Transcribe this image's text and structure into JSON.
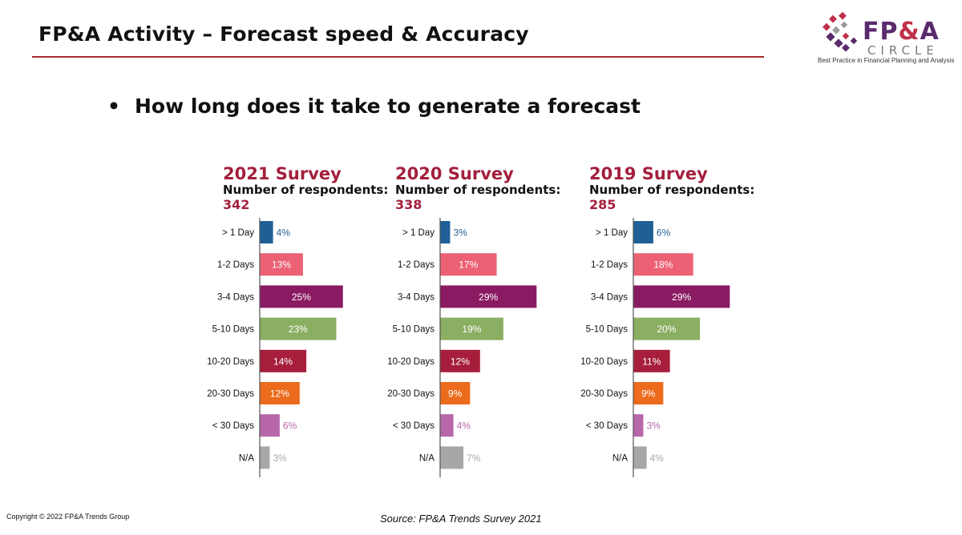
{
  "header": {
    "title": "FP&A Activity – Forecast speed & Accuracy"
  },
  "logo": {
    "brand_main": "FP",
    "brand_amp": "&",
    "brand_end": "A",
    "brand_sub": "CIRCLE",
    "tagline": "Best Practice in Financial Planning and Analysis"
  },
  "bullet": {
    "symbol": "•",
    "text": "How long does it take to generate a forecast"
  },
  "footer": {
    "copyright": "Copyright © 2022 FP&A Trends Group",
    "source": "Source: FP&A Trends Survey 2021"
  },
  "chart_data": [
    {
      "type": "bar",
      "orientation": "horizontal",
      "title": "2021 Survey",
      "respondents_label": "Number of respondents:",
      "respondents": "342",
      "categories": [
        "> 1 Day",
        "1-2 Days",
        "3-4 Days",
        "5-10 Days",
        "10-20 Days",
        "20-30 Days",
        "< 30 Days",
        "N/A"
      ],
      "values": [
        4,
        13,
        25,
        23,
        14,
        12,
        6,
        3
      ],
      "labels": [
        "4%",
        "13%",
        "25%",
        "23%",
        "14%",
        "12%",
        "6%",
        "3%"
      ],
      "xlim": [
        0,
        30
      ]
    },
    {
      "type": "bar",
      "orientation": "horizontal",
      "title": "2020 Survey",
      "respondents_label": "Number of respondents:",
      "respondents": "338",
      "categories": [
        "> 1 Day",
        "1-2 Days",
        "3-4 Days",
        "5-10 Days",
        "10-20 Days",
        "20-30 Days",
        "< 30 Days",
        "N/A"
      ],
      "values": [
        3,
        17,
        29,
        19,
        12,
        9,
        4,
        7
      ],
      "labels": [
        "3%",
        "17%",
        "29%",
        "19%",
        "12%",
        "9%",
        "4%",
        "7%"
      ],
      "xlim": [
        0,
        30
      ]
    },
    {
      "type": "bar",
      "orientation": "horizontal",
      "title": "2019 Survey",
      "respondents_label": "Number of respondents:",
      "respondents": "285",
      "categories": [
        "> 1 Day",
        "1-2 Days",
        "3-4 Days",
        "5-10 Days",
        "10-20 Days",
        "20-30 Days",
        "< 30 Days",
        "N/A"
      ],
      "values": [
        6,
        18,
        29,
        20,
        11,
        9,
        3,
        4
      ],
      "labels": [
        "6%",
        "18%",
        "29%",
        "20%",
        "11%",
        "9%",
        "3%",
        "4%"
      ],
      "xlim": [
        0,
        30
      ]
    }
  ],
  "colors": {
    "category_colors": [
      "#1f5f96",
      "#ec6274",
      "#8a1a62",
      "#8aae62",
      "#a71e3c",
      "#ec6b1d",
      "#b867aa",
      "#a7a7a7"
    ],
    "accent": "#a31f3c",
    "rule": "#a52a2a"
  }
}
